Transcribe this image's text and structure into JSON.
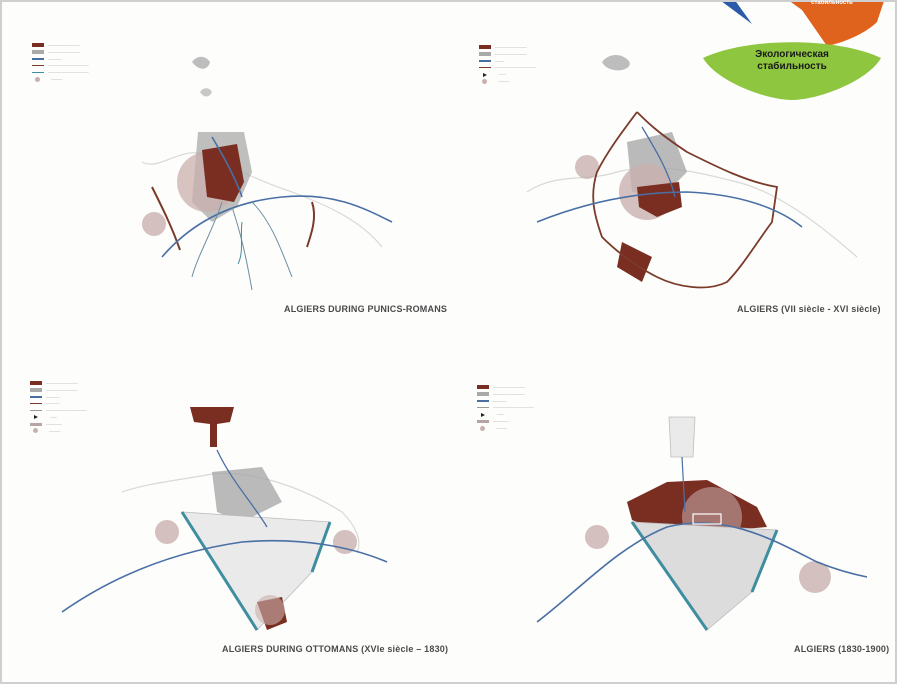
{
  "badge": {
    "title_line1": "Экологическая",
    "title_line2": "стабильность",
    "top_fragment": "стабильность",
    "colors": {
      "green": "#8ec63f",
      "orange": "#e0631d",
      "blue": "#2b5ba8"
    }
  },
  "panels": [
    {
      "caption": "ALGIERS DURING PUNICS-ROMANS"
    },
    {
      "caption": "ALGIERS (VII siècle - XVI siècle)"
    },
    {
      "caption": "ALGIERS DURING OTTOMANS (XVIe siècle – 1830)"
    },
    {
      "caption": "ALGIERS (1830-1900)"
    }
  ],
  "colors": {
    "new_occupation": "#7a2e22",
    "old_occupation": "#a9a9a9",
    "road": "#4a6fa5",
    "wall": "#7a3b2a",
    "canal": "#3e8ea0",
    "zone": "#c9b0ae"
  }
}
